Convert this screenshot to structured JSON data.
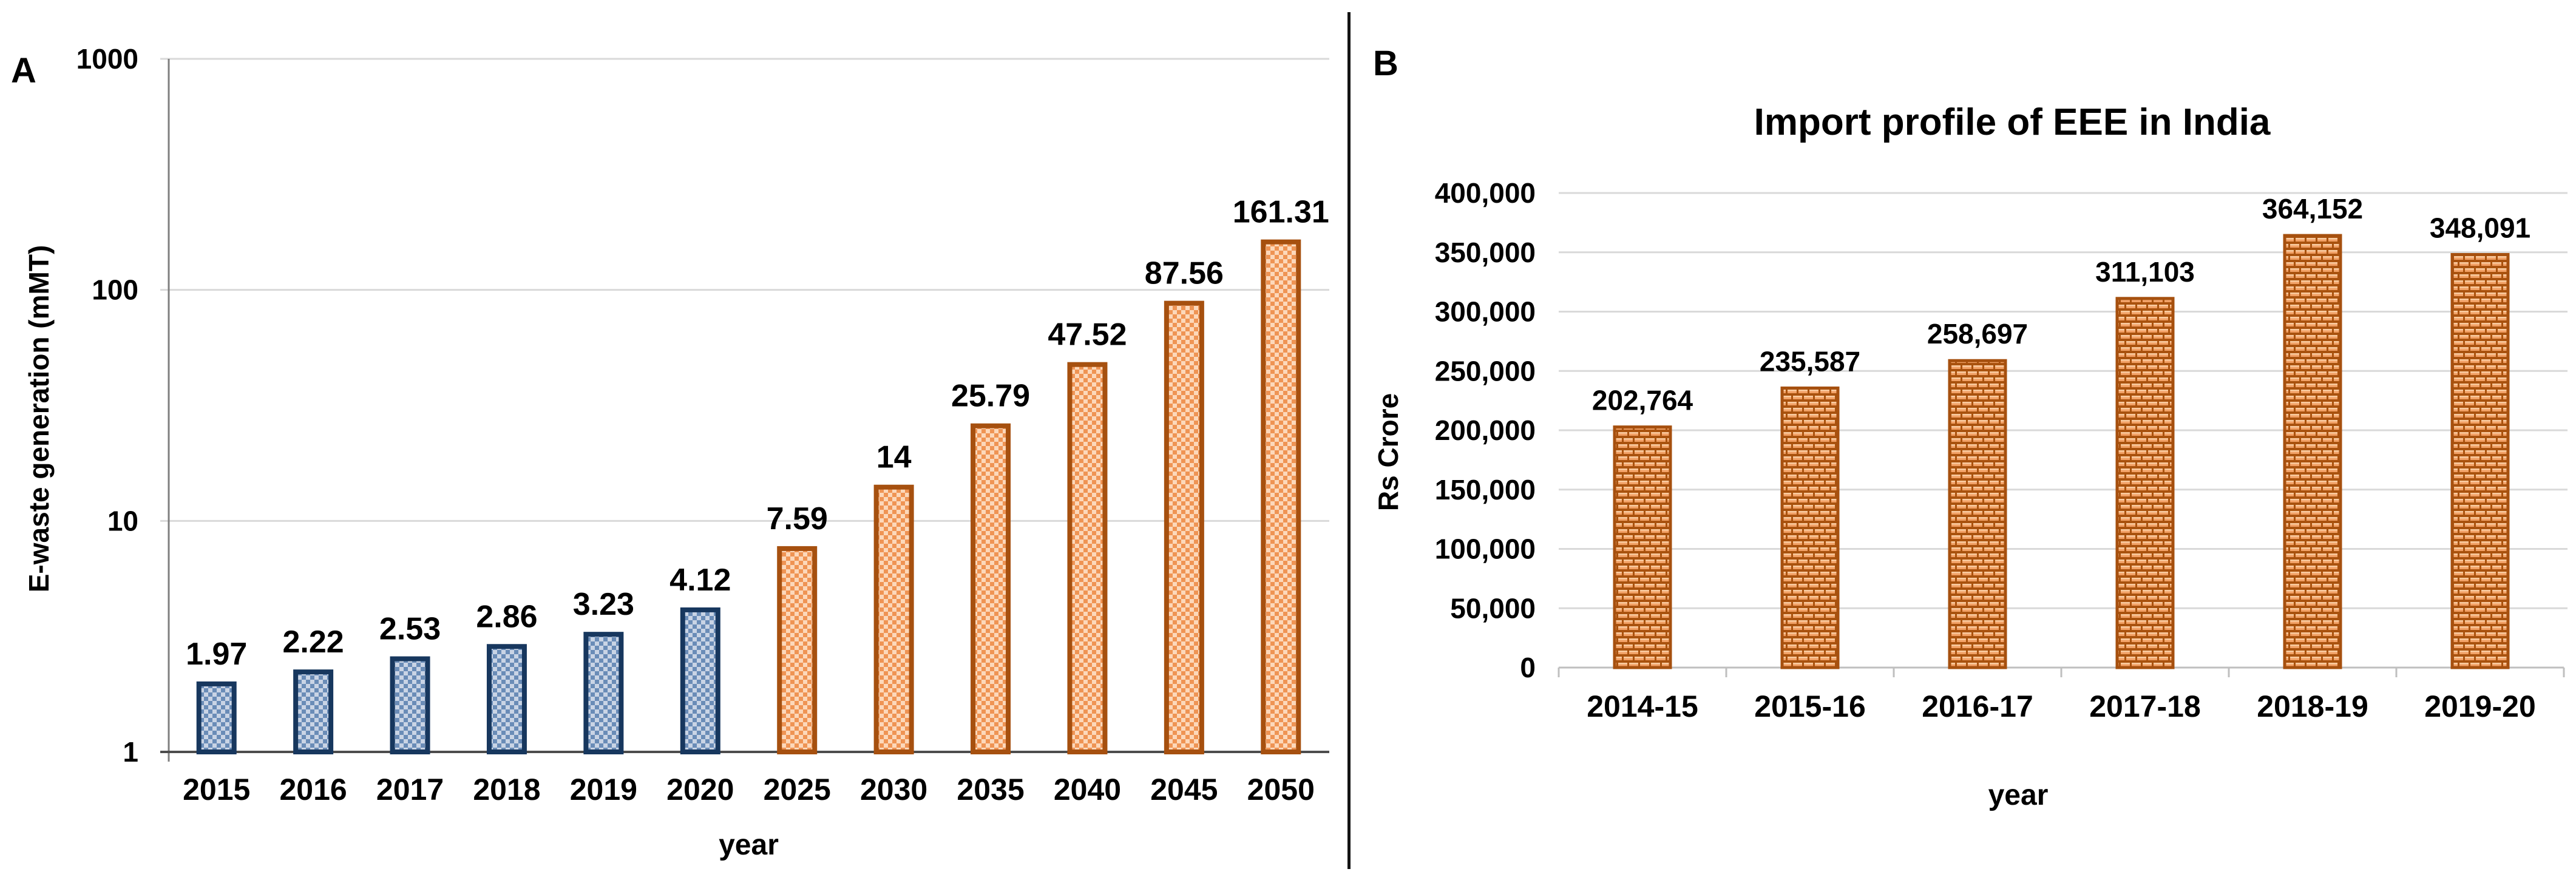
{
  "panels": {
    "a_label": "A",
    "b_label": "B"
  },
  "colors": {
    "blue_border": "#17375E",
    "blue_fill_light": "#C9D4E5",
    "blue_fill_mid": "#6A8CB7",
    "orange_border": "#A6500F",
    "orange_fill_light": "#FCD8BA",
    "orange_fill_mid": "#EF9454",
    "brick_mortar": "#A9520E",
    "brick_fill": "#F2A166",
    "brick_highlight": "#F9CBA0",
    "gridline": "#D9D9D9",
    "axis_dark": "#4D4D4D",
    "axis_medium": "#7F7F7F",
    "axis_light": "#BFBFBF",
    "divider": "#141414",
    "text": "#000000"
  },
  "chart_data": [
    {
      "id": "ewaste-generation",
      "type": "bar",
      "title": "",
      "xlabel": "year",
      "ylabel": "E-waste generation (mMT)",
      "yscale": "log",
      "ylim": [
        1,
        1000
      ],
      "grid": true,
      "legend": "none",
      "ytick_values": [
        1,
        10,
        100,
        1000
      ],
      "ytick_labels": [
        "1",
        "10",
        "100",
        "1000"
      ],
      "categories": [
        "2015",
        "2016",
        "2017",
        "2018",
        "2019",
        "2020",
        "2025",
        "2030",
        "2035",
        "2040",
        "2045",
        "2050"
      ],
      "values": [
        1.97,
        2.22,
        2.53,
        2.86,
        3.23,
        4.12,
        7.59,
        14,
        25.79,
        47.52,
        87.56,
        161.31
      ],
      "value_labels": [
        "1.97",
        "2.22",
        "2.53",
        "2.86",
        "3.23",
        "4.12",
        "7.59",
        "14",
        "25.79",
        "47.52",
        "87.56",
        "161.31"
      ],
      "bar_styles": [
        "blue",
        "blue",
        "blue",
        "blue",
        "blue",
        "blue",
        "orange",
        "orange",
        "orange",
        "orange",
        "orange",
        "orange"
      ],
      "series": [
        {
          "name": "historical (blue checkered bars)",
          "categories": [
            "2015",
            "2016",
            "2017",
            "2018",
            "2019",
            "2020"
          ],
          "values": [
            1.97,
            2.22,
            2.53,
            2.86,
            3.23,
            4.12
          ]
        },
        {
          "name": "projected (orange checkered bars)",
          "categories": [
            "2025",
            "2030",
            "2035",
            "2040",
            "2045",
            "2050"
          ],
          "values": [
            7.59,
            14,
            25.79,
            47.52,
            87.56,
            161.31
          ]
        }
      ]
    },
    {
      "id": "import-profile",
      "type": "bar",
      "title": "Import profile of EEE in India",
      "xlabel": "year",
      "ylabel": "Rs Crore",
      "yscale": "linear",
      "ylim": [
        0,
        400000
      ],
      "ytick_step": 50000,
      "grid": true,
      "legend": "none",
      "ytick_values": [
        0,
        50000,
        100000,
        150000,
        200000,
        250000,
        300000,
        350000,
        400000
      ],
      "ytick_labels": [
        "0",
        "50,000",
        "100,000",
        "150,000",
        "200,000",
        "250,000",
        "300,000",
        "350,000",
        "400,000"
      ],
      "categories": [
        "2014-15",
        "2015-16",
        "2016-17",
        "2017-18",
        "2018-19",
        "2019-20"
      ],
      "values": [
        202764,
        235587,
        258697,
        311103,
        364152,
        348091
      ],
      "value_labels": [
        "202,764",
        "235,587",
        "258,697",
        "311,103",
        "364,152",
        "348,091"
      ],
      "bar_styles": [
        "brick",
        "brick",
        "brick",
        "brick",
        "brick",
        "brick"
      ]
    }
  ]
}
